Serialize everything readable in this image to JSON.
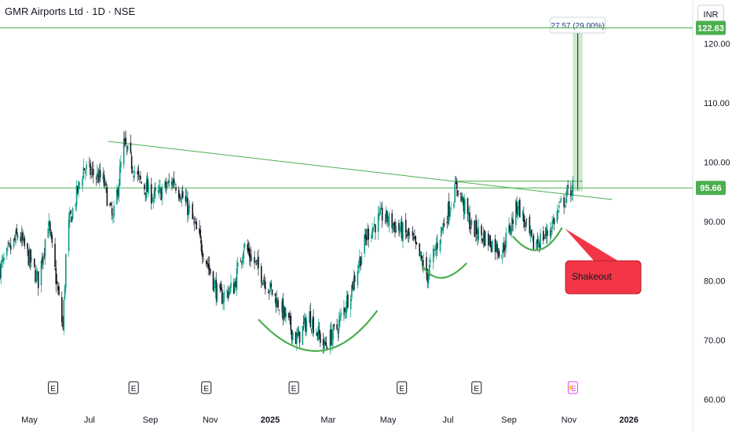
{
  "header": {
    "title": "GMR Airports Ltd · 1D · NSE",
    "currency": "INR"
  },
  "colors": {
    "up": "#089981",
    "down": "#131722",
    "trend": "#4caf50",
    "price_label": "#4caf50",
    "callout": "#f23645",
    "target_label": "#1e3a8a"
  },
  "chart_data": {
    "type": "candlestick",
    "title": "GMR Airports Ltd · 1D · NSE",
    "y_axis": {
      "ticks": [
        60,
        70,
        80,
        90,
        100,
        110,
        120
      ],
      "tick_labels": [
        "60.00",
        "70.00",
        "80.00",
        "90.00",
        "100.00",
        "110.00",
        "120.00"
      ],
      "range": [
        58.5,
        126
      ]
    },
    "x_axis": {
      "tick_labels": [
        "May",
        "Jul",
        "Sep",
        "Nov",
        "2025",
        "Mar",
        "May",
        "Jul",
        "Sep",
        "Nov",
        "2026"
      ],
      "start": "2024-04-01",
      "end": "2026-03-07"
    },
    "price_path": [
      [
        "2024-04-01",
        82
      ],
      [
        "2024-04-20",
        88
      ],
      [
        "2024-05-10",
        80
      ],
      [
        "2024-05-20",
        90
      ],
      [
        "2024-06-04",
        72
      ],
      [
        "2024-06-08",
        88
      ],
      [
        "2024-06-25",
        99
      ],
      [
        "2024-07-15",
        97
      ],
      [
        "2024-07-25",
        90
      ],
      [
        "2024-08-05",
        103
      ],
      [
        "2024-08-20",
        97
      ],
      [
        "2024-09-05",
        94
      ],
      [
        "2024-09-25",
        97
      ],
      [
        "2024-10-10",
        92
      ],
      [
        "2024-10-25",
        85
      ],
      [
        "2024-11-10",
        77
      ],
      [
        "2024-11-25",
        79
      ],
      [
        "2024-12-05",
        86
      ],
      [
        "2024-12-20",
        82
      ],
      [
        "2025-01-10",
        76
      ],
      [
        "2025-01-28",
        70
      ],
      [
        "2025-02-10",
        74
      ],
      [
        "2025-02-25",
        69
      ],
      [
        "2025-03-10",
        72
      ],
      [
        "2025-03-25",
        79
      ],
      [
        "2025-04-10",
        88
      ],
      [
        "2025-04-25",
        91
      ],
      [
        "2025-05-10",
        89
      ],
      [
        "2025-05-25",
        87
      ],
      [
        "2025-06-10",
        81
      ],
      [
        "2025-06-25",
        89
      ],
      [
        "2025-07-10",
        96
      ],
      [
        "2025-07-25",
        89
      ],
      [
        "2025-08-10",
        87
      ],
      [
        "2025-08-25",
        85
      ],
      [
        "2025-09-10",
        93
      ],
      [
        "2025-09-25",
        86
      ],
      [
        "2025-10-10",
        88
      ],
      [
        "2025-10-25",
        93
      ],
      [
        "2025-11-05",
        96
      ]
    ],
    "horizontal_lines": [
      {
        "price": 122.63,
        "label": "122.63"
      },
      {
        "price": 95.66,
        "label": "95.66"
      }
    ],
    "trendline": {
      "start": [
        "2024-07-20",
        103.5
      ],
      "end": [
        "2025-12-15",
        93.7
      ]
    },
    "resistance_segment": {
      "start": [
        "2025-07-10",
        96.8
      ],
      "end": [
        "2025-11-15",
        96.8
      ]
    },
    "measure": {
      "start_date": "2025-11-05",
      "end_date": "2025-11-15",
      "from_price": 95.06,
      "to_price": 122.63,
      "label": "27.57 (29.00%)"
    },
    "arcs": [
      {
        "start": [
          "2024-12-20",
          73.5
        ],
        "bottom": [
          "2025-02-20",
          68.2
        ],
        "end": [
          "2025-04-20",
          75
        ]
      },
      {
        "start": [
          "2025-06-05",
          82.5
        ],
        "bottom": [
          "2025-06-25",
          80.5
        ],
        "end": [
          "2025-07-20",
          83
        ]
      },
      {
        "start": [
          "2025-09-05",
          87.5
        ],
        "bottom": [
          "2025-10-01",
          85.2
        ],
        "end": [
          "2025-10-25",
          89
        ]
      }
    ],
    "callout": {
      "text": "Shakeout",
      "anchor": [
        "2025-10-28",
        88.8
      ]
    },
    "earnings_markers": [
      {
        "date": "2024-05-25",
        "label": "E"
      },
      {
        "date": "2024-08-15",
        "label": "E"
      },
      {
        "date": "2024-10-28",
        "label": "E"
      },
      {
        "date": "2025-01-25",
        "label": "E"
      },
      {
        "date": "2025-05-15",
        "label": "E"
      },
      {
        "date": "2025-07-30",
        "label": "E"
      },
      {
        "date": "2025-11-05",
        "label": "E",
        "upcoming": true
      }
    ]
  }
}
